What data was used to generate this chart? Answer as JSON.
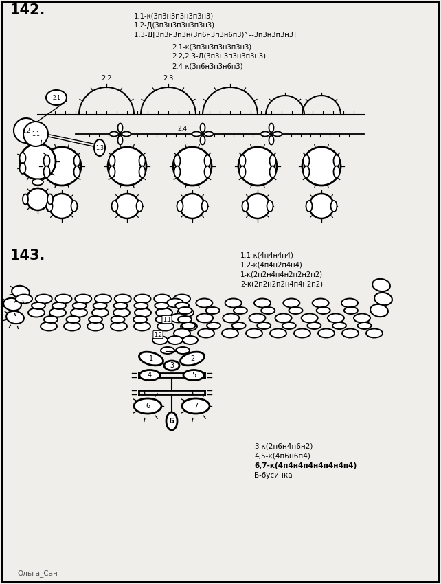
{
  "bg_color": "#f0eeea",
  "title142": "142.",
  "title143": "143.",
  "lines142": [
    [
      "1.1-к(3п3н3п3н3п3н3)",
      195,
      832
    ],
    [
      "1.2-Д(3п3н3п3н3п3н3)",
      195,
      818
    ],
    [
      "1.3-Д[3п3н3п3н(3п6н3п3н6п3)³ --3п3н3п3н3]",
      195,
      804
    ],
    [
      "2.1-к(3п3н3п3н3п3н3)",
      250,
      787
    ],
    [
      "2.2,2.3-Д(3п3н3п3н3п3н3)",
      250,
      773
    ],
    [
      "2.4-к(3п6н3п3н6п3)",
      250,
      759
    ]
  ],
  "lines143_top": [
    [
      "1.1-к(4п4н4п4)",
      350,
      484
    ],
    [
      "1.2-к(4п4н2п4н4)",
      350,
      470
    ],
    [
      "1-к(2п2н4п4н2п2н2п2)",
      350,
      456
    ],
    [
      "2-к(2п2н2п2н4п4н2п2)",
      350,
      442
    ]
  ],
  "lines143_bot": [
    [
      "3-к(2п6н4п6н2)",
      370,
      205,
      "normal"
    ],
    [
      "4,5-к(4п6н6п4)",
      370,
      191,
      "normal"
    ],
    [
      "6,7-к(4п4н4п4н4п4н4п4)",
      370,
      177,
      "bold"
    ],
    [
      "Б-бусинка",
      370,
      163,
      "normal"
    ]
  ],
  "watermark": "Ольга_Сан"
}
